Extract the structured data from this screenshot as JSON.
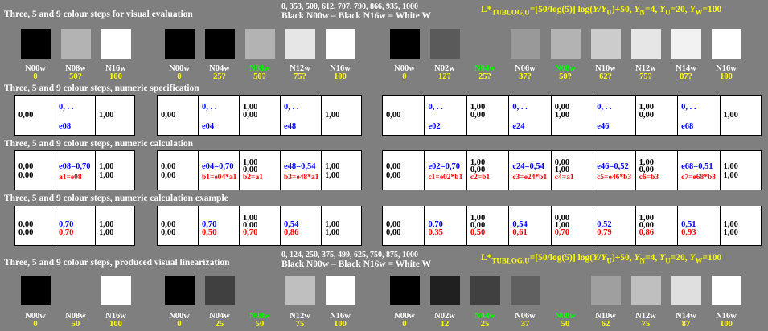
{
  "top": {
    "title": "Three, 5 and 9 colour steps for visual evaluation",
    "mid1": "0, 353, 500, 612, 707, 790, 866, 935, 1000",
    "mid2": "Black N00w – Black N16w = White W",
    "formula": "L*TUBLOG,U=[50/log(5)] log(Y/YU)+50, YN=4, YU=20, YW=100"
  },
  "bottom_hdr": {
    "title": "Three, 5 and 9 colour steps, produced visual linearization",
    "mid1": "0, 124, 250, 375, 499, 625, 750, 875, 1000",
    "mid2": "Black N00w – Black N16w = White W",
    "formula": "L*TUBLOG,U=[50/log(5)] log(Y/YU)+50, YN=4, YU=20, YW=100"
  },
  "sections": {
    "spec": "Three, 5 and 9 colour steps, numeric specification",
    "calc": "Three, 5 and 9 colour steps, numeric calculation",
    "example": "Three, 5 and 9 colour steps, numeric calculation example"
  },
  "colors": {
    "background": "#7f7f7f",
    "label": "#ffffff",
    "value": "#ffff00",
    "highlight": "#00ff00",
    "blue": "#0000ff",
    "red": "#ff0000"
  },
  "swatches_top": [
    "#000000",
    "#b3b3b3",
    "#ffffff",
    "#000000",
    "#000000",
    "#b3b3b3",
    "#e6e6e6",
    "#ffffff",
    "#000000",
    "#5a5a5a",
    "#7f7f7f",
    "#999999",
    "#b3b3b3",
    "#cccccc",
    "#e6e6e6",
    "#f2f2f2",
    "#ffffff"
  ],
  "swatches_bottom": [
    "#000000",
    "#7f7f7f",
    "#ffffff",
    "#000000",
    "#404040",
    "#7f7f7f",
    "#bfbfbf",
    "#ffffff",
    "#000000",
    "#202020",
    "#404040",
    "#606060",
    "#7f7f7f",
    "#9f9f9f",
    "#bfbfbf",
    "#dfdfdf",
    "#ffffff"
  ],
  "labels_top": [
    {
      "n": "N00w",
      "v": "0"
    },
    {
      "n": "N08w",
      "v": "50?"
    },
    {
      "n": "N16w",
      "v": "100"
    },
    {
      "n": "N00w",
      "v": "0"
    },
    {
      "n": "N04w",
      "v": "25?"
    },
    {
      "n": "N08w",
      "v": "50?"
    },
    {
      "n": "N12w",
      "v": "75?"
    },
    {
      "n": "N16w",
      "v": "100"
    },
    {
      "n": "N00w",
      "v": "0"
    },
    {
      "n": "N02w",
      "v": "12?"
    },
    {
      "n": "N04w",
      "v": "25?"
    },
    {
      "n": "N06w",
      "v": "37?"
    },
    {
      "n": "N08w",
      "v": "50?"
    },
    {
      "n": "N10w",
      "v": "62?"
    },
    {
      "n": "N12w",
      "v": "75?"
    },
    {
      "n": "N14w",
      "v": "87?"
    },
    {
      "n": "N16w",
      "v": "100"
    }
  ],
  "labels_bottom": [
    {
      "n": "N00w",
      "v": "0"
    },
    {
      "n": "N08w",
      "v": "50"
    },
    {
      "n": "N16w",
      "v": "100"
    },
    {
      "n": "N00w",
      "v": "0"
    },
    {
      "n": "N04w",
      "v": "25"
    },
    {
      "n": "N08w",
      "v": "50"
    },
    {
      "n": "N12w",
      "v": "75"
    },
    {
      "n": "N16w",
      "v": "100"
    },
    {
      "n": "N00w",
      "v": "0"
    },
    {
      "n": "N02w",
      "v": "12"
    },
    {
      "n": "N04w",
      "v": "25"
    },
    {
      "n": "N06w",
      "v": "37"
    },
    {
      "n": "N08w",
      "v": "50"
    },
    {
      "n": "N10w",
      "v": "62"
    },
    {
      "n": "N12w",
      "v": "75"
    },
    {
      "n": "N14w",
      "v": "87"
    },
    {
      "n": "N16w",
      "v": "100"
    }
  ],
  "spec_rows": [
    [
      {
        "k1": "0,00"
      },
      {
        "b1": "0, . .",
        "b2": "e08"
      },
      {
        "k1": "1,00"
      }
    ],
    [
      {
        "k1": "0,00"
      },
      {
        "b1": "0, . .",
        "b2": "e04"
      },
      {
        "k1": "1,00",
        "k2": "0,00"
      },
      {
        "b1": "0, . .",
        "b2": "e48"
      },
      {
        "k1": "1,00"
      }
    ],
    [
      {
        "k1": "0,00"
      },
      {
        "b1": "0, . .",
        "b2": "e02"
      },
      {
        "k1": "1,00",
        "k2": "0,00"
      },
      {
        "b1": "0, . .",
        "b2": "e24"
      },
      {
        "k1": "0,00",
        "k2": "1,00"
      },
      {
        "b1": "0, . .",
        "b2": "e46"
      },
      {
        "k1": "1,00",
        "k2": "0,00"
      },
      {
        "b1": "0, . .",
        "b2": "e68"
      },
      {
        "k1": "1,00"
      }
    ]
  ],
  "calc_rows": [
    [
      {
        "k1": "0,00",
        "k2": "0,00"
      },
      {
        "b1": "e08=0,70",
        "r2": "a1=e08"
      },
      {
        "k1": "1,00",
        "k2": "1,00"
      }
    ],
    [
      {
        "k1": "0,00",
        "k2": "0,00"
      },
      {
        "b1": "e04=0,70",
        "r2": "b1=e04*a1"
      },
      {
        "k1": "1,00",
        "k2": "0,00",
        "r3": "b2=a1"
      },
      {
        "b1": "e48=0,54",
        "r2": "b3=e48*a1"
      },
      {
        "k1": "1,00",
        "k2": "1,00"
      }
    ],
    [
      {
        "k1": "0,00",
        "k2": "0,00"
      },
      {
        "b1": "e02=0,70",
        "r2": "c1=e02*b1"
      },
      {
        "k1": "1,00",
        "k2": "0,00",
        "r3": "c2=b1"
      },
      {
        "b1": "c24=0,54",
        "r2": "c3=e24*b1"
      },
      {
        "k1": "0,00",
        "k2": "1,00",
        "r3": "c4=a1"
      },
      {
        "b1": "e46=0,52",
        "r2": "c5=e46*b3"
      },
      {
        "k1": "1,00",
        "k2": "0,00",
        "r3": "c6=b3"
      },
      {
        "b1": "e68=0,51",
        "r2": "c7=e68*b3"
      },
      {
        "k1": "1,00",
        "k2": "1,00"
      }
    ]
  ],
  "example_rows": [
    [
      {
        "k1": "0,00",
        "k2": "0,00"
      },
      {
        "b1": "0,70",
        "r2": "0,70"
      },
      {
        "k1": "1,00",
        "k2": "1,00"
      }
    ],
    [
      {
        "k1": "0,00",
        "k2": "0,00"
      },
      {
        "b1": "0,70",
        "r2": "0,50"
      },
      {
        "k1": "1,00",
        "k2": "0,00",
        "r3": "0,70"
      },
      {
        "b1": "0,54",
        "r2": "0,86"
      },
      {
        "k1": "1,00",
        "k2": "1,00"
      }
    ],
    [
      {
        "k1": "0,00",
        "k2": "0,00"
      },
      {
        "b1": "0,70",
        "r2": "0,35"
      },
      {
        "k1": "1,00",
        "k2": "0,00",
        "r3": "0,50"
      },
      {
        "b1": "0,54",
        "r2": "0,61"
      },
      {
        "k1": "0,00",
        "k2": "1,00",
        "r3": "0,70"
      },
      {
        "b1": "0,52",
        "r2": "0,79"
      },
      {
        "k1": "1,00",
        "k2": "0,00",
        "r3": "0,86"
      },
      {
        "b1": "0,51",
        "r2": "0,93"
      },
      {
        "k1": "1,00",
        "k2": "1,00"
      }
    ]
  ]
}
